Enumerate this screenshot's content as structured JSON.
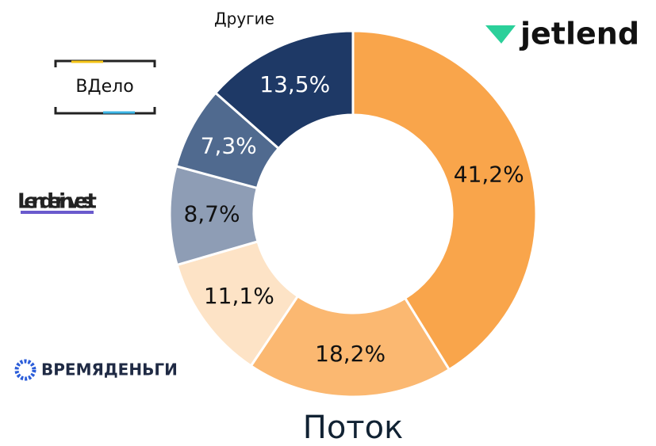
{
  "chart_data": {
    "type": "donut",
    "categories": [
      "jetlend",
      "Поток",
      "ВРЕМЯДЕНЬГИ",
      "Lender invest",
      "ВДело",
      "Другие"
    ],
    "values": [
      41.2,
      18.2,
      11.1,
      8.7,
      7.3,
      13.5
    ],
    "value_labels": [
      "41,2%",
      "18,2%",
      "11,1%",
      "8,7%",
      "7,3%",
      "13,5%"
    ],
    "colors": [
      "#f9a54b",
      "#fbb871",
      "#fde3c6",
      "#8e9db5",
      "#506a8f",
      "#1e3966"
    ]
  }
}
